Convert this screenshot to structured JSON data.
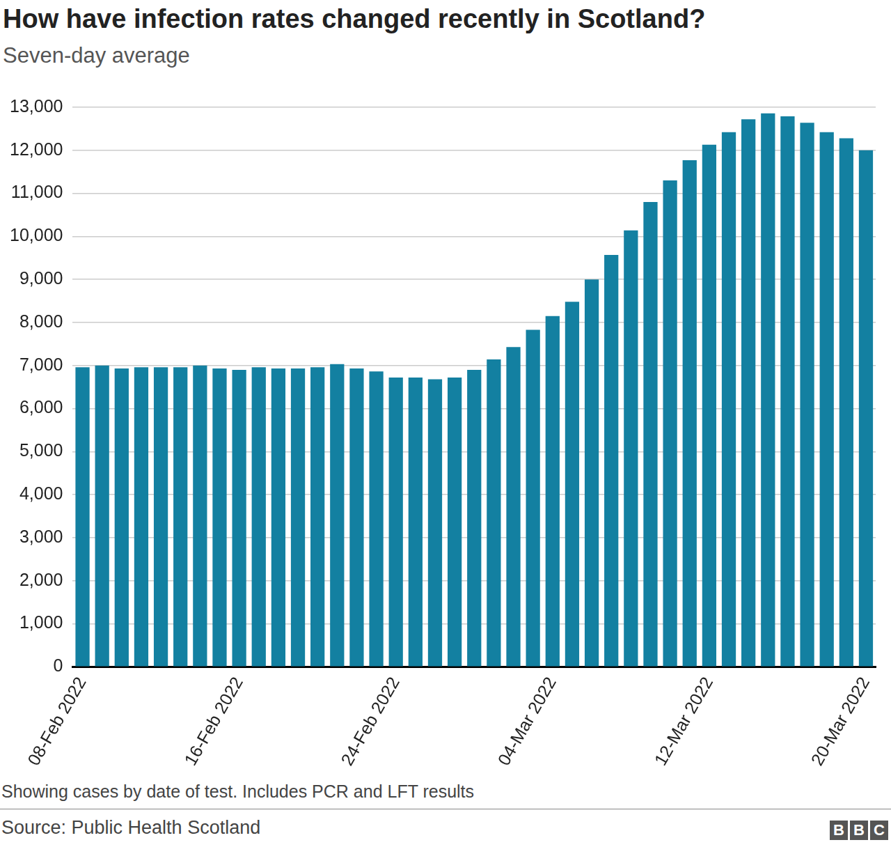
{
  "chart_data": {
    "type": "bar",
    "title": "How have infection rates changed recently in Scotland?",
    "subtitle": "Seven-day average",
    "note": "Showing cases by date of test. Includes PCR and LFT results",
    "source": "Source: Public Health Scotland",
    "logo": "BBC",
    "categories": [
      "08-Feb 2022",
      null,
      null,
      null,
      null,
      null,
      null,
      null,
      "16-Feb 2022",
      null,
      null,
      null,
      null,
      null,
      null,
      null,
      "24-Feb 2022",
      null,
      null,
      null,
      null,
      null,
      null,
      null,
      "04-Mar 2022",
      null,
      null,
      null,
      null,
      null,
      null,
      null,
      "12-Mar 2022",
      null,
      null,
      null,
      null,
      null,
      null,
      null,
      "20-Mar 2022"
    ],
    "values": [
      6960,
      7000,
      6930,
      6960,
      6960,
      6960,
      7000,
      6930,
      6900,
      6960,
      6930,
      6930,
      6960,
      7030,
      6930,
      6860,
      6720,
      6720,
      6680,
      6720,
      6900,
      7140,
      7430,
      7830,
      8150,
      8480,
      9000,
      9570,
      10140,
      10800,
      11300,
      11770,
      12130,
      12420,
      12720,
      12860,
      12790,
      12640,
      12420,
      12280,
      12000
    ],
    "color": "#1380a1",
    "ylim": [
      0,
      13000
    ],
    "yticks": [
      0,
      {
        "value": 1000,
        "label": "1,000"
      },
      {
        "value": 2000,
        "label": "2,000"
      },
      {
        "value": 3000,
        "label": "3,000"
      },
      {
        "value": 4000,
        "label": "4,000"
      },
      {
        "value": 5000,
        "label": "5,000"
      },
      {
        "value": 6000,
        "label": "6,000"
      },
      {
        "value": 7000,
        "label": "7,000"
      },
      {
        "value": 8000,
        "label": "8,000"
      },
      {
        "value": 9000,
        "label": "9,000"
      },
      {
        "value": 10000,
        "label": "10,000"
      },
      {
        "value": 11000,
        "label": "11,000"
      },
      {
        "value": 12000,
        "label": "12,000"
      },
      {
        "value": 13000,
        "label": "13,000"
      }
    ],
    "grid": true
  }
}
